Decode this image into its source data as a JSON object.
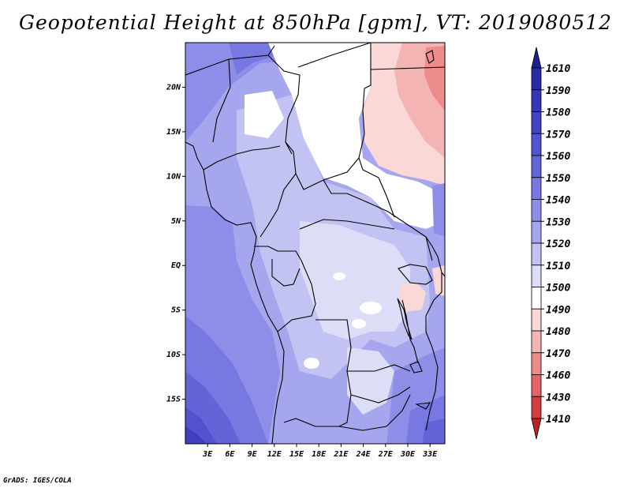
{
  "title": "Geopotential Height at 850hPa [gpm], VT: 2019080512",
  "credit": "GrADS: IGES/COLA",
  "map": {
    "lat_labels": [
      "20N",
      "15N",
      "10N",
      "5N",
      "EQ",
      "5S",
      "10S",
      "15S"
    ],
    "lon_labels": [
      "3E",
      "6E",
      "9E",
      "12E",
      "15E",
      "18E",
      "21E",
      "24E",
      "27E",
      "30E",
      "33E"
    ],
    "lat_values": [
      20,
      15,
      10,
      5,
      0,
      -5,
      -10,
      -15
    ],
    "lon_values": [
      3,
      6,
      9,
      12,
      15,
      18,
      21,
      24,
      27,
      30,
      33
    ],
    "extent": {
      "lon_min": 0,
      "lon_max": 35,
      "lat_min": -20,
      "lat_max": 25
    }
  },
  "colorbar": {
    "levels": [
      "1610",
      "1590",
      "1580",
      "1570",
      "1560",
      "1550",
      "1540",
      "1530",
      "1520",
      "1510",
      "1500",
      "1490",
      "1480",
      "1470",
      "1460",
      "1430",
      "1410"
    ],
    "colors": [
      "#1e1e8e",
      "#2b2ba5",
      "#3636b6",
      "#4343c3",
      "#5252ce",
      "#6464d8",
      "#7878e2",
      "#8e8ee9",
      "#a6a6ee",
      "#c3c3f3",
      "#ddddf8",
      "#ffffff",
      "#fbd8d8",
      "#f4b4b4",
      "#ec8c8c",
      "#e26464",
      "#d23e3e",
      "#b92222"
    ]
  },
  "palette": {
    "land_light": "#dcdcfa",
    "border": "#000000"
  }
}
